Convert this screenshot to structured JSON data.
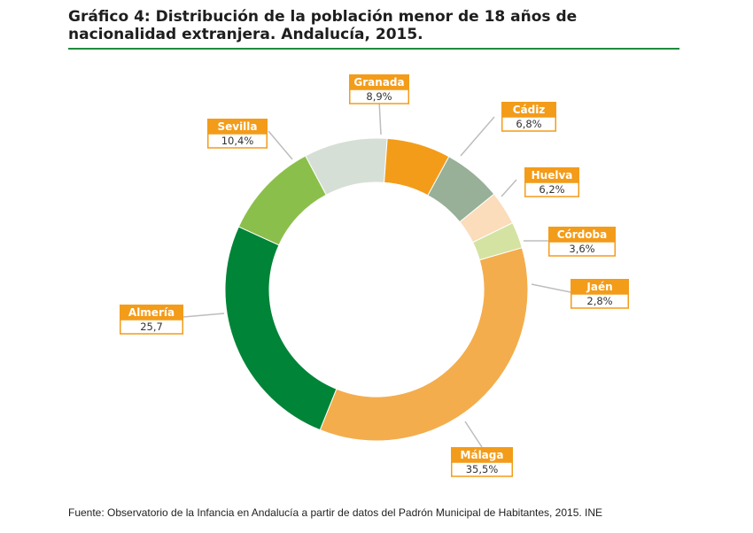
{
  "title": "Gráfico 4: Distribución de la población menor de 18 años de nacionalidad extranjera. Andalucía, 2015.",
  "source": "Fuente: Observatorio de la Infancia en Andalucía a partir de datos del Padrón Municipal de Habitantes, 2015. INE",
  "chart_data": {
    "type": "pie",
    "style": "donut",
    "slices": [
      {
        "label": "Granada",
        "value": 8.9,
        "display": "8,9%",
        "color": "#d5dfd6"
      },
      {
        "label": "Cádiz",
        "value": 6.8,
        "display": "6,8%",
        "color": "#f39c1a"
      },
      {
        "label": "Huelva",
        "value": 6.2,
        "display": "6,2%",
        "color": "#97b097"
      },
      {
        "label": "Córdoba",
        "value": 3.6,
        "display": "3,6%",
        "color": "#fbdcbb"
      },
      {
        "label": "Jaén",
        "value": 2.8,
        "display": "2,8%",
        "color": "#d4e3a1"
      },
      {
        "label": "Málaga",
        "value": 35.5,
        "display": "35,5%",
        "color": "#f4ad4c"
      },
      {
        "label": "Almería",
        "value": 25.7,
        "display": "25,7",
        "color": "#008437"
      },
      {
        "label": "Sevilla",
        "value": 10.4,
        "display": "10,4%",
        "color": "#8bbf4b"
      }
    ],
    "label_color": "#f39c1a",
    "leader_color": "#bdbdbd"
  }
}
